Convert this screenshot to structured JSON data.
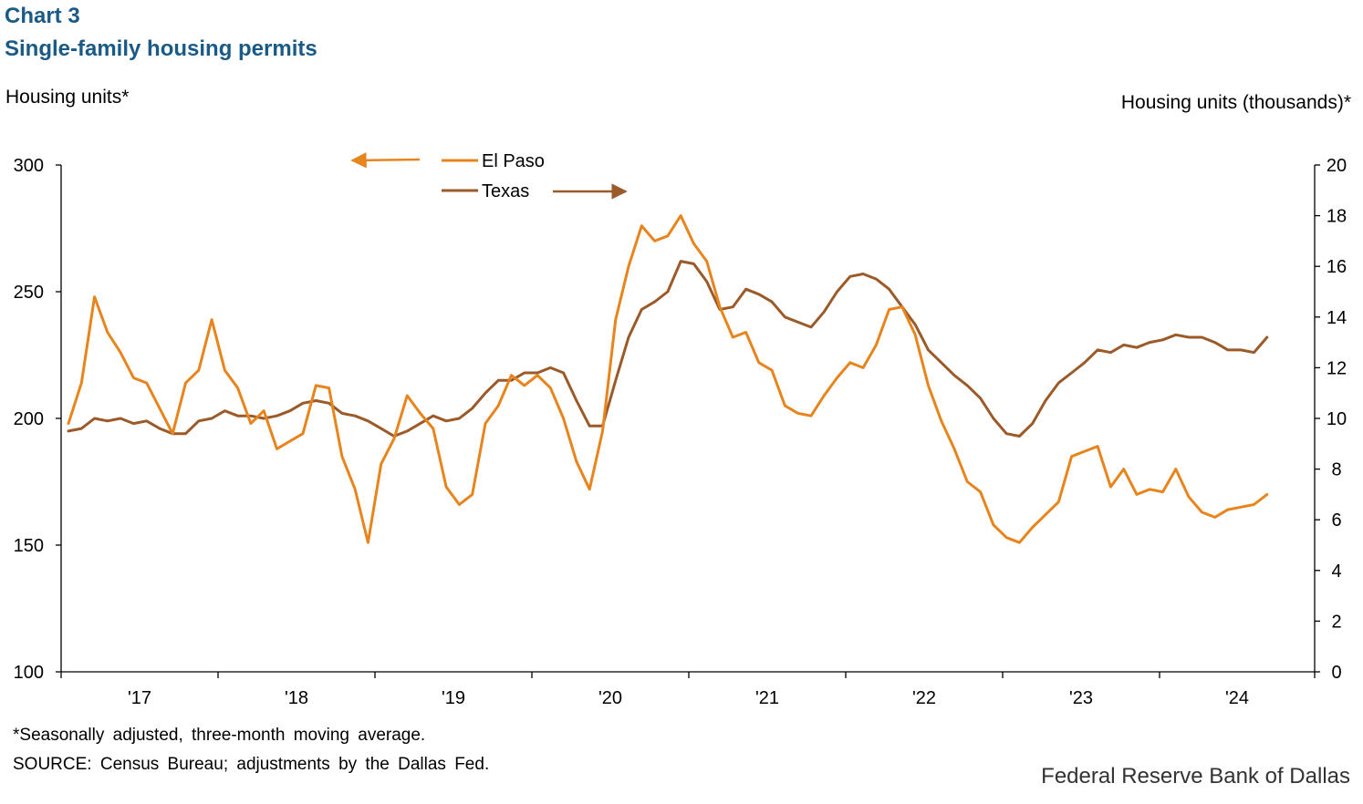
{
  "title": "Chart 3",
  "subtitle": "Single-family housing permits",
  "footnote": "*Seasonally adjusted, three-month moving average.",
  "source": "SOURCE: Census Bureau; adjustments by the Dallas Fed.",
  "brand": "Federal Reserve Bank of Dallas",
  "colors": {
    "el_paso": "#e8841c",
    "texas": "#9b5a28",
    "title": "#1a5a86"
  },
  "chart_data": {
    "type": "line",
    "ylabel_left": "Housing units*",
    "ylabel_right": "Housing units (thousands)*",
    "ylim_left": [
      100,
      300
    ],
    "ylim_right": [
      0,
      20
    ],
    "yticks_left": [
      "100",
      "150",
      "200",
      "250",
      "300"
    ],
    "yticks_right": [
      "0",
      "2",
      "4",
      "6",
      "8",
      "10",
      "12",
      "14",
      "16",
      "18",
      "20"
    ],
    "x_tick_labels": [
      "'17",
      "'18",
      "'19",
      "'20",
      "'21",
      "'22",
      "'23",
      "'24"
    ],
    "x_start": "2016-09",
    "x_end": "2024-08",
    "grid": false,
    "legend": "top-center",
    "series": [
      {
        "name": "El Paso",
        "axis": "left",
        "values": [
          198,
          214,
          248,
          234,
          226,
          216,
          214,
          204,
          194,
          214,
          219,
          239,
          219,
          212,
          198,
          203,
          188,
          191,
          194,
          213,
          212,
          185,
          172,
          151,
          182,
          192,
          209,
          202,
          196,
          173,
          166,
          170,
          198,
          205,
          217,
          213,
          217,
          212,
          200,
          183,
          172,
          195,
          239,
          260,
          276,
          270,
          272,
          280,
          269,
          262,
          244,
          232,
          234,
          222,
          219,
          205,
          202,
          201,
          209,
          216,
          222,
          220,
          229,
          243,
          244,
          233,
          213,
          199,
          188,
          175,
          171,
          158,
          153,
          151,
          157,
          162,
          167,
          185,
          187,
          189,
          173,
          180,
          170,
          172,
          171,
          180,
          169,
          163,
          161,
          164,
          165,
          166,
          170
        ]
      },
      {
        "name": "Texas",
        "axis": "right",
        "values": [
          9.5,
          9.6,
          10.0,
          9.9,
          10.0,
          9.8,
          9.9,
          9.6,
          9.4,
          9.4,
          9.9,
          10.0,
          10.3,
          10.1,
          10.1,
          10.0,
          10.1,
          10.3,
          10.6,
          10.7,
          10.6,
          10.2,
          10.1,
          9.9,
          9.6,
          9.3,
          9.5,
          9.8,
          10.1,
          9.9,
          10.0,
          10.4,
          11.0,
          11.5,
          11.5,
          11.8,
          11.8,
          12.0,
          11.8,
          10.7,
          9.7,
          9.7,
          11.5,
          13.2,
          14.3,
          14.6,
          15.0,
          16.2,
          16.1,
          15.4,
          14.3,
          14.4,
          15.1,
          14.9,
          14.6,
          14.0,
          13.8,
          13.6,
          14.2,
          15.0,
          15.6,
          15.7,
          15.5,
          15.1,
          14.4,
          13.7,
          12.7,
          12.2,
          11.7,
          11.3,
          10.8,
          10.0,
          9.4,
          9.3,
          9.8,
          10.7,
          11.4,
          11.8,
          12.2,
          12.7,
          12.6,
          12.9,
          12.8,
          13.0,
          13.1,
          13.3,
          13.2,
          13.2,
          13.0,
          12.7,
          12.7,
          12.6,
          13.2
        ]
      }
    ]
  }
}
